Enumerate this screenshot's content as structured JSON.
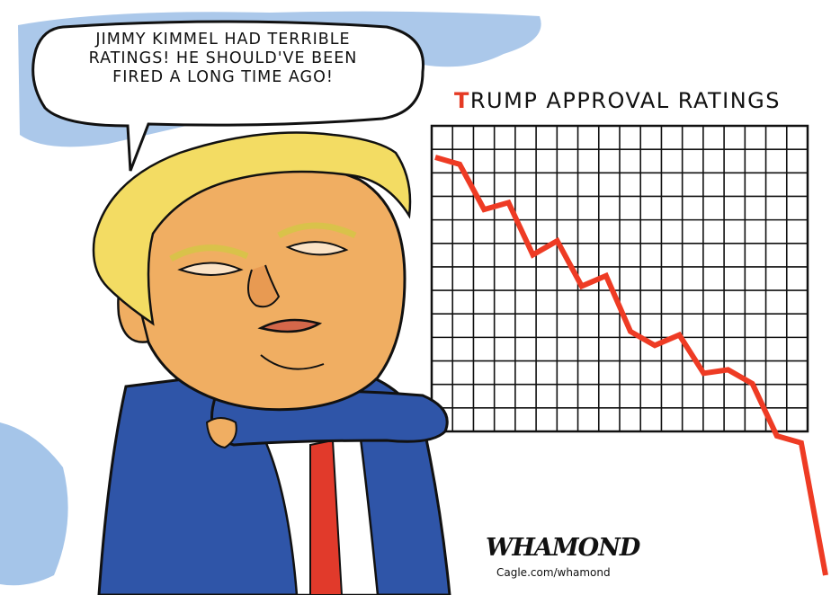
{
  "speech_bubble": {
    "lines": [
      "JIMMY KIMMEL HAD TERRIBLE",
      "RATINGS! HE SHOULD'VE BEEN",
      "FIRED A LONG TIME AGO!"
    ]
  },
  "chart": {
    "title_initial": "T",
    "title_rest": "RUMP APPROVAL RATINGS"
  },
  "signature": "WHAMOND",
  "credit": "Cagle.com/whamond",
  "colors": {
    "sky_blue": "#8fb6e3",
    "suit_blue": "#2f55a8",
    "tie_red": "#e13a2b",
    "hair_yellow": "#f3dc63",
    "skin_orange": "#f0ae62",
    "trend_red": "#ee3b24"
  },
  "chart_data": {
    "type": "line",
    "title": "TRUMP APPROVAL RATINGS",
    "grid": true,
    "series": [
      {
        "values": [
          100,
          98,
          85,
          87,
          72,
          76,
          63,
          66,
          50,
          46,
          49,
          38,
          39,
          35,
          20,
          18,
          -20
        ]
      }
    ]
  }
}
